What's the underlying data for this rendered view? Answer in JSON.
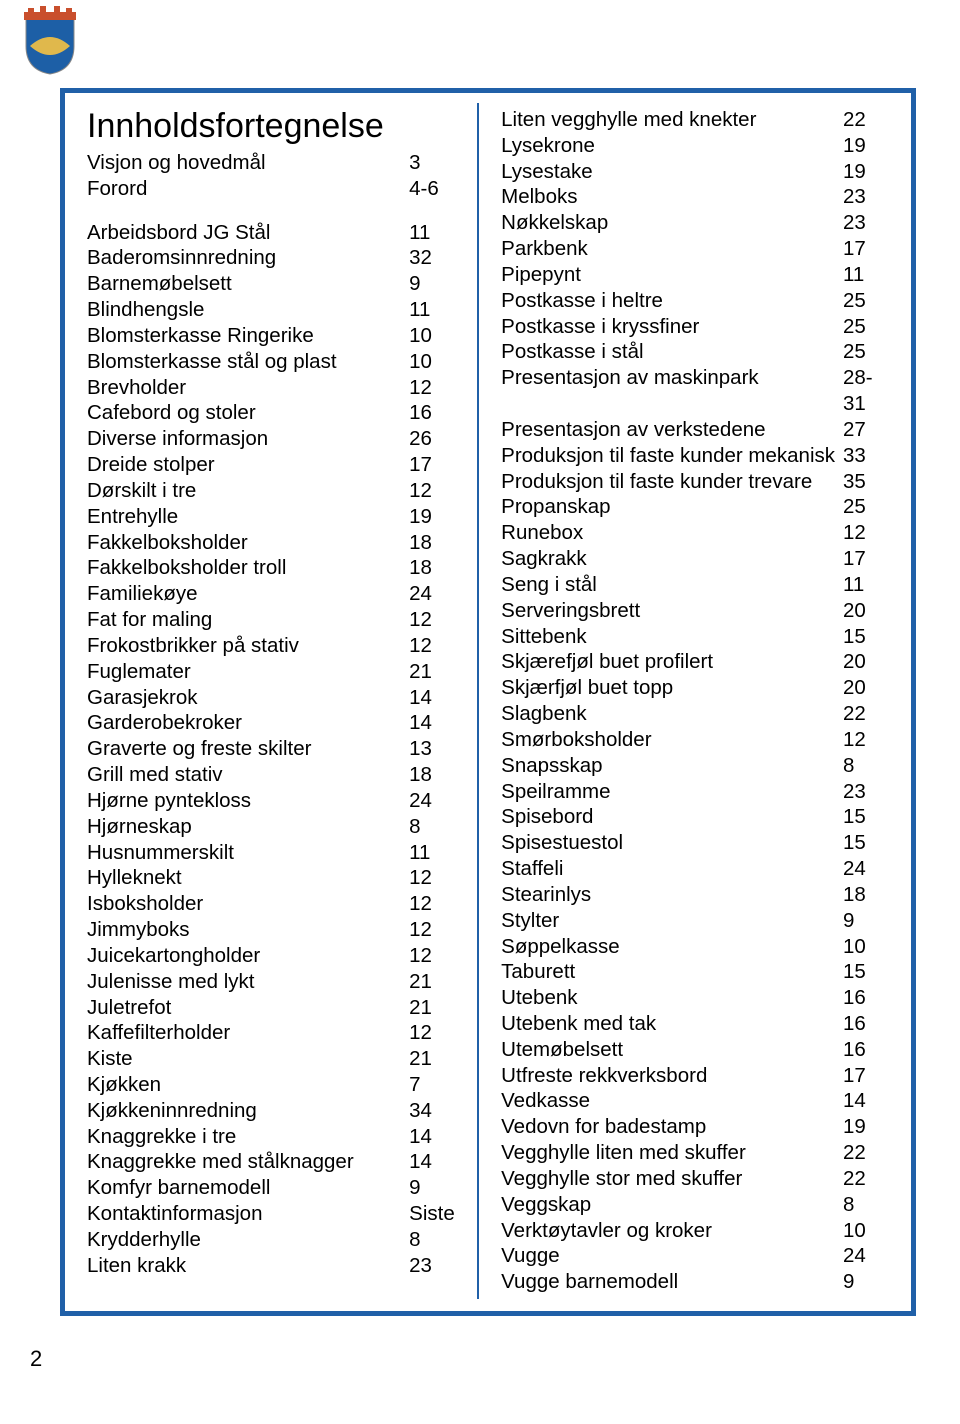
{
  "colors": {
    "border": "#2060a8",
    "text": "#000000",
    "bg": "#ffffff",
    "crest_crown": "#c94f2d",
    "crest_field": "#1d5fa6",
    "crest_gold": "#e0b84c"
  },
  "title": "Innholdsfortegnelse",
  "intro": [
    {
      "label": "Visjon og hovedmål",
      "page": "3"
    },
    {
      "label": "Forord",
      "page": "4-6"
    }
  ],
  "left": [
    {
      "label": "Arbeidsbord JG  Stål",
      "page": "11"
    },
    {
      "label": "Baderomsinnredning",
      "page": "32"
    },
    {
      "label": "Barnemøbelsett",
      "page": "9"
    },
    {
      "label": "Blindhengsle",
      "page": "11"
    },
    {
      "label": "Blomsterkasse Ringerike",
      "page": "10"
    },
    {
      "label": "Blomsterkasse stål og plast",
      "page": "10"
    },
    {
      "label": "Brevholder",
      "page": "12"
    },
    {
      "label": "Cafebord og stoler",
      "page": "16"
    },
    {
      "label": "Diverse informasjon",
      "page": "26"
    },
    {
      "label": "Dreide stolper",
      "page": "17"
    },
    {
      "label": "Dørskilt i tre",
      "page": "12"
    },
    {
      "label": "Entrehylle",
      "page": "19"
    },
    {
      "label": "Fakkelboksholder",
      "page": "18"
    },
    {
      "label": "Fakkelboksholder troll",
      "page": "18"
    },
    {
      "label": "Familiekøye",
      "page": "24"
    },
    {
      "label": "Fat for maling",
      "page": "12"
    },
    {
      "label": "Frokostbrikker på stativ",
      "page": "12"
    },
    {
      "label": "Fuglemater",
      "page": "21"
    },
    {
      "label": "Garasjekrok",
      "page": "14"
    },
    {
      "label": "Garderobekroker",
      "page": "14"
    },
    {
      "label": "Graverte og freste skilter",
      "page": "13"
    },
    {
      "label": "Grill med stativ",
      "page": "18"
    },
    {
      "label": "Hjørne pyntekloss",
      "page": "24"
    },
    {
      "label": "Hjørneskap",
      "page": "8"
    },
    {
      "label": "Husnummerskilt",
      "page": "11"
    },
    {
      "label": "Hylleknekt",
      "page": "12"
    },
    {
      "label": "Isboksholder",
      "page": "12"
    },
    {
      "label": "Jimmyboks",
      "page": "12"
    },
    {
      "label": "Juicekartongholder",
      "page": "12"
    },
    {
      "label": "Julenisse med lykt",
      "page": "21"
    },
    {
      "label": "Juletrefot",
      "page": "21"
    },
    {
      "label": "Kaffefilterholder",
      "page": "12"
    },
    {
      "label": "Kiste",
      "page": "21"
    },
    {
      "label": "Kjøkken",
      "page": "7"
    },
    {
      "label": "Kjøkkeninnredning",
      "page": "34"
    },
    {
      "label": "Knaggrekke i tre",
      "page": "14"
    },
    {
      "label": "Knaggrekke med stålknagger",
      "page": "14"
    },
    {
      "label": "Komfyr barnemodell",
      "page": "9"
    },
    {
      "label": "Kontaktinformasjon",
      "page": "Siste"
    },
    {
      "label": "Krydderhylle",
      "page": "8"
    },
    {
      "label": "Liten krakk",
      "page": "23"
    }
  ],
  "right": [
    {
      "label": "Liten vegghylle med knekter",
      "page": "22"
    },
    {
      "label": "Lysekrone",
      "page": "19"
    },
    {
      "label": "Lysestake",
      "page": "19"
    },
    {
      "label": "Melboks",
      "page": "23"
    },
    {
      "label": "Nøkkelskap",
      "page": "23"
    },
    {
      "label": "Parkbenk",
      "page": "17"
    },
    {
      "label": "Pipepynt",
      "page": "11"
    },
    {
      "label": "Postkasse i heltre",
      "page": "25"
    },
    {
      "label": "Postkasse i kryssfiner",
      "page": "25"
    },
    {
      "label": "Postkasse i stål",
      "page": "25"
    },
    {
      "label": "Presentasjon av maskinpark",
      "page": "28-31"
    },
    {
      "label": "Presentasjon av verkstedene",
      "page": "27"
    },
    {
      "label": "Produksjon til faste kunder mekanisk",
      "page": "33"
    },
    {
      "label": "Produksjon til faste kunder trevare",
      "page": "35"
    },
    {
      "label": "Propanskap",
      "page": "25"
    },
    {
      "label": "Runebox",
      "page": "12"
    },
    {
      "label": "Sagkrakk",
      "page": "17"
    },
    {
      "label": "Seng i stål",
      "page": "11"
    },
    {
      "label": "Serveringsbrett",
      "page": "20"
    },
    {
      "label": "Sittebenk",
      "page": "15"
    },
    {
      "label": "Skjærefjøl buet profilert",
      "page": "20"
    },
    {
      "label": "Skjærfjøl buet topp",
      "page": "20"
    },
    {
      "label": "Slagbenk",
      "page": "22"
    },
    {
      "label": "Smørboksholder",
      "page": "12"
    },
    {
      "label": "Snapsskap",
      "page": "8"
    },
    {
      "label": "Speilramme",
      "page": "23"
    },
    {
      "label": "Spisebord",
      "page": "15"
    },
    {
      "label": "Spisestuestol",
      "page": "15"
    },
    {
      "label": "Staffeli",
      "page": "24"
    },
    {
      "label": "Stearinlys",
      "page": "18"
    },
    {
      "label": "Stylter",
      "page": "9"
    },
    {
      "label": "Søppelkasse",
      "page": "10"
    },
    {
      "label": "Taburett",
      "page": "15"
    },
    {
      "label": "Utebenk",
      "page": "16"
    },
    {
      "label": "Utebenk med tak",
      "page": "16"
    },
    {
      "label": "Utemøbelsett",
      "page": "16"
    },
    {
      "label": "Utfreste rekkverksbord",
      "page": "17"
    },
    {
      "label": "Vedkasse",
      "page": "14"
    },
    {
      "label": "Vedovn for badestamp",
      "page": "19"
    },
    {
      "label": "Vegghylle liten med skuffer",
      "page": "22"
    },
    {
      "label": "Vegghylle stor med skuffer",
      "page": "22"
    },
    {
      "label": "Veggskap",
      "page": "8"
    },
    {
      "label": "Verktøytavler og kroker",
      "page": "10"
    },
    {
      "label": "Vugge",
      "page": "24"
    },
    {
      "label": "Vugge barnemodell",
      "page": "9"
    }
  ],
  "page_number": "2"
}
